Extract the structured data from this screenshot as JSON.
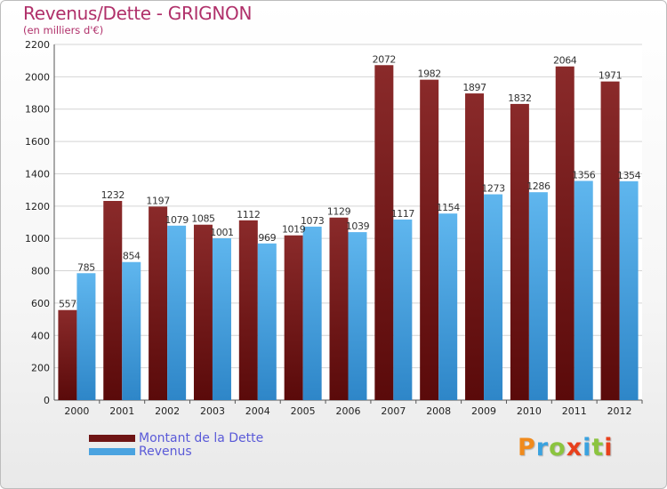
{
  "header": {
    "title": "Revenus/Dette - GRIGNON",
    "subtitle": "(en milliers d'€)"
  },
  "legend": {
    "items": [
      {
        "label": "Montant de la Dette",
        "color": "#6e1414"
      },
      {
        "label": "Revenus",
        "color": "#4aa3e0"
      }
    ]
  },
  "logo": {
    "letters": [
      "P",
      "r",
      "o",
      "x",
      "i",
      "t",
      "i"
    ],
    "colors": [
      "#f08a1c",
      "#3aa2df",
      "#8bc43f",
      "#e8401c",
      "#3aa2df",
      "#8bc43f",
      "#e8401c"
    ]
  },
  "colors": {
    "debt_top": "#8a2a2a",
    "debt_bottom": "#5a0a0a",
    "revenue_top": "#5fb6ee",
    "revenue_bottom": "#2e86c8",
    "title": "#b0306a",
    "grid": "#d4d4d4"
  },
  "chart_data": {
    "type": "bar",
    "title": "Revenus/Dette - GRIGNON",
    "subtitle": "(en milliers d'€)",
    "categories": [
      "2000",
      "2001",
      "2002",
      "2003",
      "2004",
      "2005",
      "2006",
      "2007",
      "2008",
      "2009",
      "2010",
      "2011",
      "2012"
    ],
    "series": [
      {
        "name": "Montant de la Dette",
        "values": [
          557,
          1232,
          1197,
          1085,
          1112,
          1019,
          1129,
          2072,
          1982,
          1897,
          1832,
          2064,
          1971
        ]
      },
      {
        "name": "Revenus",
        "values": [
          785,
          854,
          1079,
          1001,
          969,
          1073,
          1039,
          1117,
          1154,
          1273,
          1286,
          1356,
          1354
        ]
      }
    ],
    "yticks": [
      0,
      200,
      400,
      600,
      800,
      1000,
      1200,
      1400,
      1600,
      1800,
      2000,
      2200
    ],
    "ylim": [
      0,
      2200
    ],
    "grid": true,
    "legend_position": "bottom-left"
  }
}
